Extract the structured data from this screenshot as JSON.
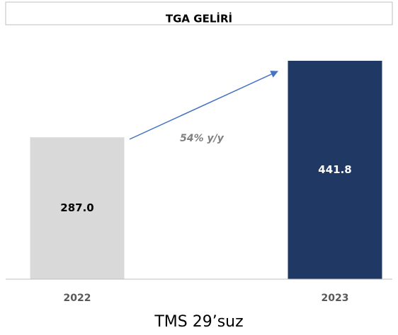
{
  "chart_data": {
    "type": "bar",
    "title": "TGA GELİRİ",
    "categories": [
      "2022",
      "2023"
    ],
    "values": [
      287.0,
      441.8
    ],
    "value_labels": [
      "287.0",
      "441.8"
    ],
    "colors": [
      "#d9d9d9",
      "#1f3864"
    ],
    "annotation": "54% y/y",
    "footer": "TMS 29’suz"
  }
}
